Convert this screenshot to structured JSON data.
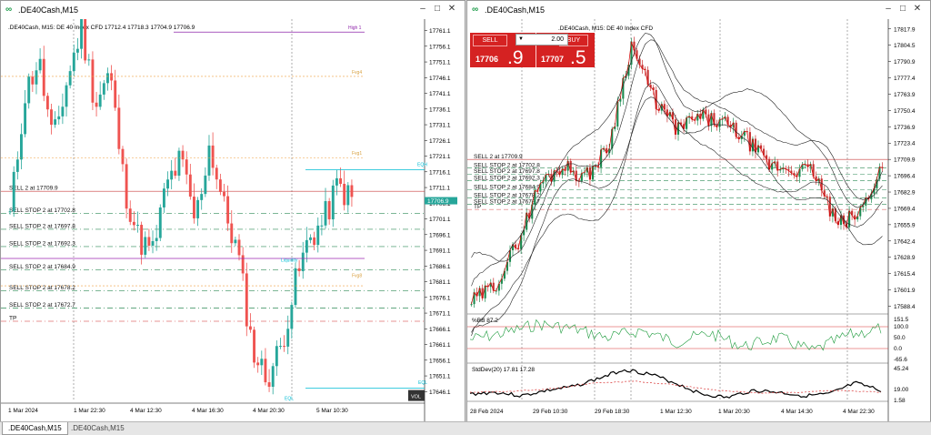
{
  "left": {
    "title": ".DE40Cash,M15",
    "info": ".DE40Cash, M15:  DE 40 Index CFD  17712.4 17718.3 17704.9 17706.9",
    "y_min": 17643,
    "y_max": 17763,
    "price_ticks": [
      "17761.1",
      "17756.1",
      "17751.1",
      "17746.1",
      "17741.1",
      "17736.1",
      "17731.1",
      "17726.1",
      "17721.1",
      "17716.1",
      "17711.1",
      "17706.1",
      "17701.1",
      "17696.1",
      "17691.1",
      "17686.1",
      "17681.1",
      "17676.1",
      "17671.1",
      "17666.1",
      "17661.1",
      "17656.1",
      "17651.1",
      "17646.1"
    ],
    "price_tick_values": [
      17761.1,
      17756.1,
      17751.1,
      17746.1,
      17741.1,
      17736.1,
      17731.1,
      17726.1,
      17721.1,
      17716.1,
      17711.1,
      17706.1,
      17701.1,
      17696.1,
      17691.1,
      17686.1,
      17681.1,
      17676.1,
      17671.1,
      17666.1,
      17661.1,
      17656.1,
      17651.1,
      17646.1
    ],
    "time_labels": [
      "1 Mar 2024",
      "1 Mar 22:30",
      "4 Mar 12:30",
      "4 Mar 16:30",
      "4 Mar 20:30",
      "5 Mar 10:30"
    ],
    "current_price": "17706.9",
    "current_value": 17706.9,
    "order_lines": [
      {
        "label": "SELL 2 at 17709.9",
        "value": 17709.9
      },
      {
        "label": "SELL STOP 2 at 17702.8",
        "value": 17702.8
      },
      {
        "label": "SELL STOP 2 at 17697.8",
        "value": 17697.8
      },
      {
        "label": "SELL STOP 2 at 17692.3",
        "value": 17692.3
      },
      {
        "label": "SELL STOP 2 at 17684.9",
        "value": 17684.9
      },
      {
        "label": "SELL STOP 2 at 17678.2",
        "value": 17678.2
      },
      {
        "label": "SELL STOP 2 at 17672.7",
        "value": 17672.7
      },
      {
        "label": "TP",
        "value": 17668.5
      }
    ],
    "annotations": [
      "High 1",
      "Fvg4",
      "Fvg1",
      "Fvg8",
      "EQH",
      "EQL",
      "Liquidity",
      "EQL",
      "VOL"
    ],
    "colors": {
      "bull": "#26a69a",
      "bear": "#ef5350",
      "sell_line": "#c93c3c",
      "stop_line": "#2e8b57",
      "accent": "#00bcd4"
    }
  },
  "right": {
    "title": ".DE40Cash,M15",
    "info": ".DE40Cash, M15:  DE 40 Index CFD",
    "trade": {
      "sell_label": "SELL",
      "buy_label": "BUY",
      "volume": "2.00",
      "bid_small": "17706",
      "bid_big": ".9",
      "ask_small": "17707",
      "ask_big": ".5"
    },
    "y_min": 17582,
    "y_max": 17823,
    "price_ticks": [
      "17817.9",
      "17804.5",
      "17790.9",
      "17777.4",
      "17763.9",
      "17750.4",
      "17736.9",
      "17723.4",
      "17709.9",
      "17696.4",
      "17682.9",
      "17669.4",
      "17655.9",
      "17642.4",
      "17628.9",
      "17615.4",
      "17601.9",
      "17588.4"
    ],
    "price_tick_values": [
      17817.9,
      17804.5,
      17790.9,
      17777.4,
      17763.9,
      17750.4,
      17736.9,
      17723.4,
      17709.9,
      17696.4,
      17682.9,
      17669.4,
      17655.9,
      17642.4,
      17628.9,
      17615.4,
      17601.9,
      17588.4
    ],
    "time_labels": [
      "28 Feb 2024",
      "29 Feb 10:30",
      "29 Feb 18:30",
      "1 Mar 12:30",
      "1 Mar 20:30",
      "4 Mar 14:30",
      "4 Mar 22:30"
    ],
    "order_lines": [
      {
        "label": "SELL 2 at 17709.9",
        "value": 17709.9
      },
      {
        "label": "SELL STOP 2 at 17702.8",
        "value": 17702.8
      },
      {
        "label": "SELL STOP 2 at 17697.8",
        "value": 17697.8
      },
      {
        "label": "SELL STOP 2 at 17692.3",
        "value": 17692.3
      },
      {
        "label": "SELL STOP 2 at 17684.9",
        "value": 17684.9
      },
      {
        "label": "SELL STOP 2 at 17678.2",
        "value": 17678.2
      },
      {
        "label": "SELL STOP 2 at 17672.7",
        "value": 17672.7
      },
      {
        "label": "TP",
        "value": 17668.5
      }
    ],
    "indicator1": {
      "label": "%BB 87.2",
      "ticks": [
        "151.5",
        "100.0",
        "50.0",
        "0.0",
        "-65.6"
      ]
    },
    "indicator2": {
      "label": "StdDev(20) 17.81 17.28",
      "ticks": [
        "45.24",
        "19.00",
        "1.58"
      ]
    }
  },
  "tabs": [
    ".DE40Cash,M15",
    ".DE40Cash,M15"
  ]
}
